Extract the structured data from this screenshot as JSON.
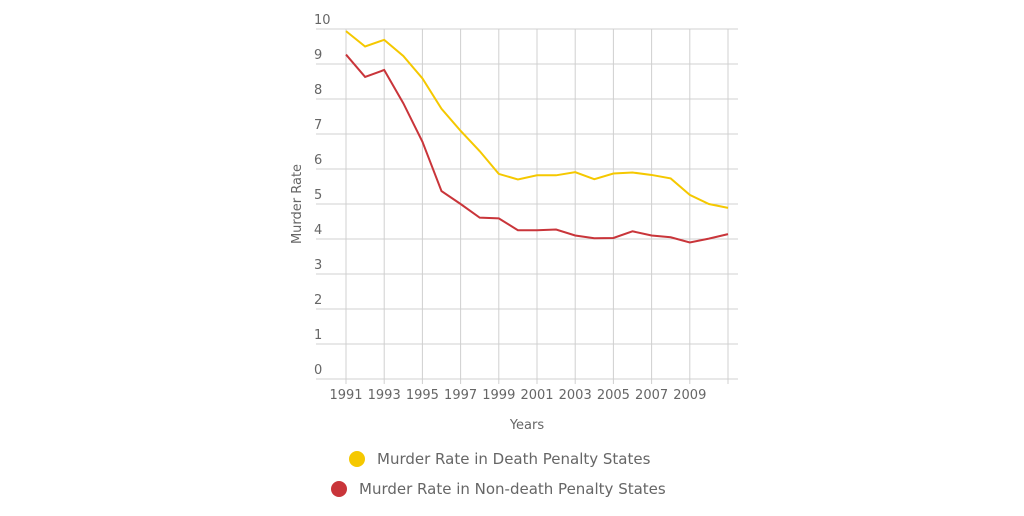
{
  "chart_data": {
    "type": "line",
    "x_label": "Years",
    "y_label": "Murder Rate",
    "x": [
      1991,
      1992,
      1993,
      1994,
      1995,
      1996,
      1997,
      1998,
      1999,
      2000,
      2001,
      2002,
      2003,
      2004,
      2005,
      2006,
      2007,
      2008,
      2009,
      2010,
      2011
    ],
    "series": [
      {
        "name": "Murder Rate in Death Penalty States",
        "color": "#f5c800",
        "values": [
          9.94,
          9.5,
          9.69,
          9.23,
          8.59,
          7.72,
          7.09,
          6.51,
          5.86,
          5.7,
          5.82,
          5.82,
          5.91,
          5.71,
          5.87,
          5.9,
          5.83,
          5.73,
          5.26,
          5.0,
          4.89
        ]
      },
      {
        "name": "Murder Rate in Non-death Penalty States",
        "color": "#c9353a",
        "values": [
          9.27,
          8.63,
          8.83,
          7.88,
          6.78,
          5.37,
          5.0,
          4.61,
          4.59,
          4.25,
          4.25,
          4.27,
          4.1,
          4.02,
          4.03,
          4.22,
          4.1,
          4.05,
          3.9,
          4.01,
          4.14
        ]
      }
    ],
    "xlim": [
      1991,
      2011
    ],
    "xticks": [
      1991,
      1993,
      1995,
      1997,
      1999,
      2001,
      2003,
      2005,
      2007,
      2009
    ],
    "ylim": [
      0,
      10
    ],
    "yticks": [
      0,
      1,
      2,
      3,
      4,
      5,
      6,
      7,
      8,
      9,
      10
    ],
    "grid": true
  }
}
